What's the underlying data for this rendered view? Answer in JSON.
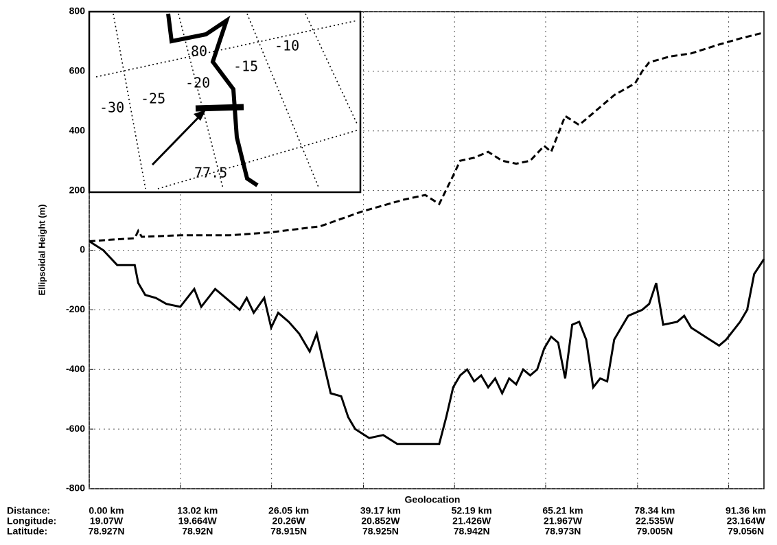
{
  "chart_data": {
    "type": "line",
    "ylabel": "Ellipsoidal Height (m)",
    "xlabel": "Geolocation",
    "xlim": [
      0,
      96.4
    ],
    "ylim": [
      -800,
      800
    ],
    "yticks": [
      -800,
      -600,
      -400,
      -200,
      0,
      200,
      400,
      600,
      800
    ],
    "xtick_row_title": "Distance:",
    "xticks": [
      {
        "value": 0,
        "label": "0.00 km"
      },
      {
        "value": 13.02,
        "label": "13.02 km"
      },
      {
        "value": 26.05,
        "label": "26.05 km"
      },
      {
        "value": 39.17,
        "label": "39.17 km"
      },
      {
        "value": 52.19,
        "label": "52.19 km"
      },
      {
        "value": 65.21,
        "label": "65.21 km"
      },
      {
        "value": 78.34,
        "label": "78.34 km"
      },
      {
        "value": 91.36,
        "label": "91.36 km"
      }
    ],
    "xtick_rows": [
      {
        "name": "Longitude:",
        "labels": [
          "19.07W",
          "19.664W",
          "20.26W",
          "20.852W",
          "21.426W",
          "21.967W",
          "22.535W",
          "23.164W"
        ]
      },
      {
        "name": "Latitude:",
        "labels": [
          "78.927N",
          "78.92N",
          "78.915N",
          "78.925N",
          "78.942N",
          "78.973N",
          "79.005N",
          "79.056N"
        ]
      }
    ],
    "grid": true,
    "series": [
      {
        "color": "#000000",
        "style": "dashed",
        "x": [
          0,
          3,
          6.5,
          7,
          7.5,
          13,
          20,
          26,
          33,
          39,
          45,
          48,
          50,
          52,
          53,
          55,
          57,
          59,
          61,
          63,
          65,
          66,
          68,
          70,
          72,
          75,
          78,
          79,
          80,
          83,
          86,
          90,
          93,
          96.4
        ],
        "values": [
          30,
          35,
          40,
          65,
          45,
          50,
          50,
          60,
          80,
          130,
          170,
          185,
          155,
          250,
          300,
          310,
          330,
          300,
          290,
          300,
          350,
          330,
          450,
          420,
          460,
          520,
          560,
          600,
          630,
          650,
          660,
          690,
          710,
          730
        ]
      },
      {
        "color": "#000000",
        "style": "solid",
        "x": [
          0,
          2,
          4,
          6.5,
          7,
          8,
          9.5,
          11,
          13,
          15,
          16,
          18,
          20,
          21.5,
          22.5,
          23.5,
          25,
          26,
          27,
          28.5,
          30,
          31.5,
          32.5,
          33.5,
          34.5,
          36,
          37,
          38,
          40,
          42,
          44,
          46,
          48,
          50,
          51,
          52,
          53,
          54,
          55,
          56,
          57,
          58,
          59,
          60,
          61,
          62,
          63,
          64,
          65,
          66,
          67,
          68,
          69,
          70,
          71,
          72,
          73,
          74,
          75,
          76,
          77,
          79,
          80,
          81,
          82,
          84,
          85,
          86,
          88,
          90,
          91,
          92,
          93,
          94,
          95,
          96.4
        ],
        "values": [
          30,
          0,
          -50,
          -50,
          -110,
          -150,
          -160,
          -180,
          -190,
          -130,
          -190,
          -130,
          -170,
          -200,
          -160,
          -210,
          -160,
          -260,
          -210,
          -240,
          -280,
          -340,
          -280,
          -380,
          -480,
          -490,
          -560,
          -600,
          -630,
          -620,
          -650,
          -650,
          -650,
          -650,
          -560,
          -460,
          -420,
          -400,
          -440,
          -420,
          -460,
          -430,
          -480,
          -430,
          -450,
          -400,
          -420,
          -400,
          -330,
          -290,
          -310,
          -430,
          -250,
          -240,
          -300,
          -460,
          -430,
          -440,
          -300,
          -260,
          -220,
          -200,
          -180,
          -110,
          -250,
          -240,
          -220,
          -260,
          -290,
          -320,
          -300,
          -270,
          -240,
          -200,
          -80,
          -30
        ]
      }
    ],
    "inset": {
      "labels": [
        "-30",
        "-25",
        "-20",
        "-15",
        "-10",
        "80",
        "77.5"
      ]
    }
  }
}
